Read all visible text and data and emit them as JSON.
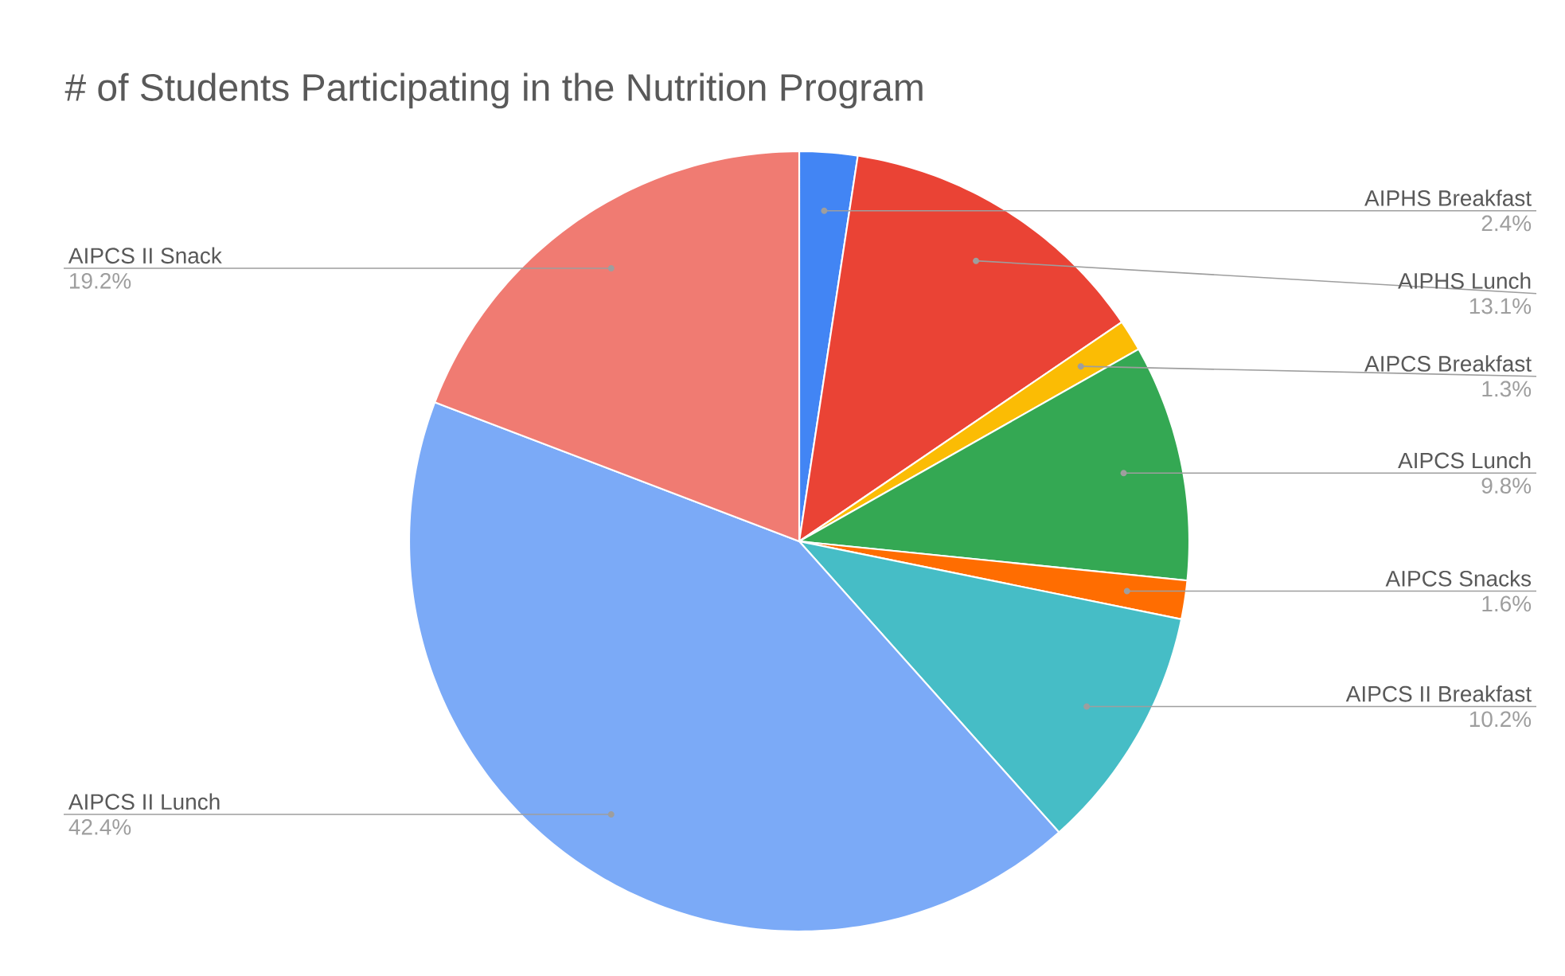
{
  "chart_data": {
    "type": "pie",
    "title": "# of Students Participating in the Nutrition Program",
    "categories": [
      "AIPHS Breakfast",
      "AIPHS Lunch",
      "AIPCS Breakfast",
      "AIPCS Lunch",
      "AIPCS Snacks",
      "AIPCS II Breakfast",
      "AIPCS II Lunch",
      "AIPCS II Snack"
    ],
    "values": [
      2.4,
      13.1,
      1.3,
      9.8,
      1.6,
      10.2,
      42.4,
      19.2
    ],
    "value_labels": [
      "2.4%",
      "13.1%",
      "1.3%",
      "9.8%",
      "1.6%",
      "10.2%",
      "42.4%",
      "19.2%"
    ],
    "colors": [
      "#4285f4",
      "#ea4335",
      "#fbbc04",
      "#34a853",
      "#ff6d01",
      "#46bdc6",
      "#7baaf7",
      "#f07b72"
    ]
  }
}
